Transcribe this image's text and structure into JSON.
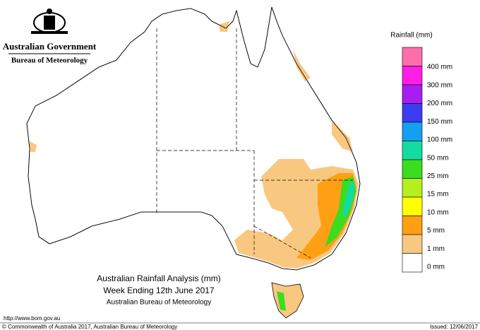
{
  "header": {
    "government": "Australian Government",
    "bureau": "Bureau of Meteorology"
  },
  "legend": {
    "title": "Rainfall (mm)",
    "colors": [
      "#ff6ea8",
      "#ff1ee6",
      "#a81ef0",
      "#3c3cf0",
      "#14a0f0",
      "#14dca0",
      "#3cdc1e",
      "#b4f01e",
      "#ffff00",
      "#ffa014",
      "#f8c880",
      "#ffffff"
    ],
    "labels": [
      "400 mm",
      "300 mm",
      "200 mm",
      "150 mm",
      "100 mm",
      "50 mm",
      "25 mm",
      "15 mm",
      "10 mm",
      "5 mm",
      "1 mm",
      "0 mm"
    ]
  },
  "caption": {
    "title": "Australian Rainfall Analysis (mm)",
    "period": "Week Ending 12th June 2017",
    "source": "Australian Bureau of Meteorology"
  },
  "footer": {
    "url": "http://www.bom.gov.au",
    "copyright": "© Commonwealth of Australia 2017, Australian Bureau of Meteorology",
    "issued": "Issued: 12/06/2017"
  }
}
